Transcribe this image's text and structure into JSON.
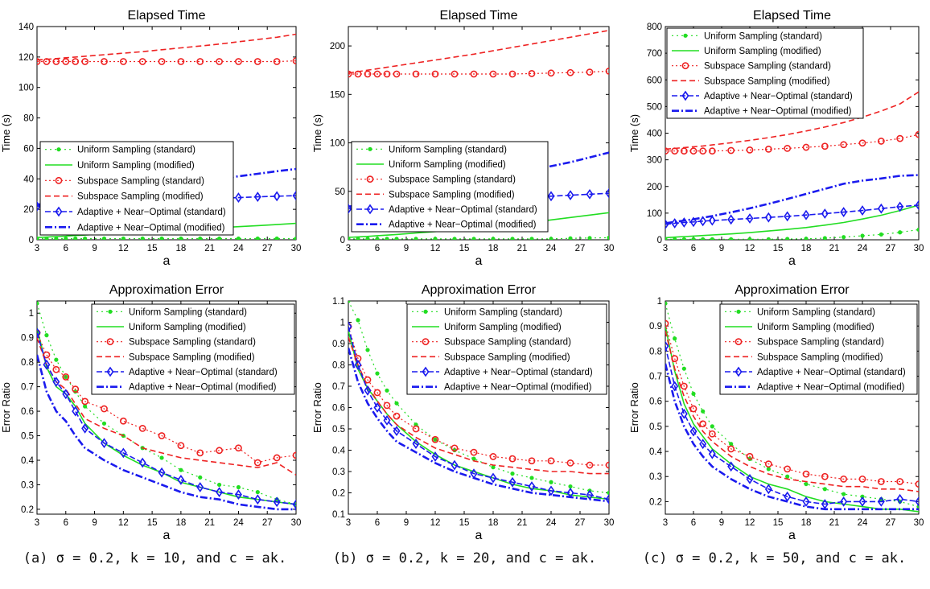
{
  "captions": [
    "(a) σ = 0.2, k = 10, and c = ak.",
    "(b) σ = 0.2, k = 20, and c = ak.",
    "(c) σ = 0.2, k = 50, and c = ak."
  ],
  "style": {
    "series_colors": [
      "#22dd22",
      "#22dd22",
      "#ee2222",
      "#ee2222",
      "#1a1aee",
      "#1a1aee"
    ]
  },
  "chart_data": [
    {
      "type": "line",
      "title": "Elapsed Time",
      "xlabel": "a",
      "ylabel": "Time (s)",
      "xlim": [
        3,
        30
      ],
      "ylim": [
        0,
        140
      ],
      "xticks": [
        "3",
        "6",
        "9",
        "12",
        "15",
        "18",
        "21",
        "24",
        "27",
        "30"
      ],
      "yticks": [
        "0",
        "20",
        "40",
        "60",
        "80",
        "100",
        "120",
        "140"
      ],
      "legend": "center-left",
      "x": [
        3,
        4,
        5,
        6,
        7,
        8,
        10,
        12,
        14,
        16,
        18,
        20,
        22,
        24,
        26,
        28,
        30
      ],
      "series": [
        {
          "name": "Uniform Sampling (standard)",
          "values": [
            0.8,
            0.8,
            0.8,
            0.8,
            0.8,
            0.8,
            0.8,
            0.8,
            0.8,
            0.8,
            0.8,
            0.8,
            0.8,
            0.8,
            0.8,
            0.8,
            0.8
          ]
        },
        {
          "name": "Uniform Sampling (modified)",
          "values": [
            1.5,
            1.8,
            2.1,
            2.4,
            2.8,
            3.1,
            3.8,
            4.4,
            5.1,
            5.8,
            6.5,
            7.2,
            7.9,
            8.6,
            9.3,
            10.0,
            10.8
          ]
        },
        {
          "name": "Subspace Sampling (standard)",
          "values": [
            117,
            117,
            117,
            117,
            117,
            117,
            117,
            117,
            117,
            117,
            117,
            117,
            117,
            117,
            117,
            117,
            117.5
          ]
        },
        {
          "name": "Subspace Sampling (modified)",
          "values": [
            118,
            118.5,
            119,
            119.5,
            120,
            120.5,
            121.5,
            122.5,
            123.5,
            124.8,
            126,
            127.2,
            128.5,
            130,
            131.5,
            133,
            135
          ]
        },
        {
          "name": "Adaptive + Near−Optimal (standard)",
          "values": [
            22,
            22.5,
            23,
            23.3,
            23.7,
            24,
            24.7,
            25.3,
            25.8,
            26.2,
            26.5,
            27,
            27.3,
            27.7,
            28.2,
            28.6,
            29
          ]
        },
        {
          "name": "Adaptive + Near−Optimal (modified)",
          "values": [
            23,
            24,
            25,
            26,
            27,
            27.8,
            29.5,
            31.3,
            33,
            34.8,
            36.6,
            38.3,
            40,
            41.7,
            43.3,
            45,
            46.5
          ]
        }
      ]
    },
    {
      "type": "line",
      "title": "Elapsed Time",
      "xlabel": "a",
      "ylabel": "Time (s)",
      "xlim": [
        3,
        30
      ],
      "ylim": [
        0,
        220
      ],
      "xticks": [
        "3",
        "6",
        "9",
        "12",
        "15",
        "18",
        "21",
        "24",
        "27",
        "30"
      ],
      "yticks": [
        "0",
        "50",
        "100",
        "150",
        "200"
      ],
      "legend": "center-left",
      "x": [
        3,
        4,
        5,
        6,
        7,
        8,
        10,
        12,
        14,
        16,
        18,
        20,
        22,
        24,
        26,
        28,
        30
      ],
      "series": [
        {
          "name": "Uniform Sampling (standard)",
          "values": [
            1,
            1,
            1,
            1,
            1,
            1,
            1,
            1,
            1,
            1,
            1,
            1,
            1,
            1,
            1.5,
            1.8,
            2.2
          ]
        },
        {
          "name": "Uniform Sampling (modified)",
          "values": [
            2.5,
            3,
            3.5,
            4.2,
            4.8,
            5.5,
            7,
            8.5,
            10,
            12,
            14,
            16,
            18,
            20.5,
            23,
            25.5,
            28
          ]
        },
        {
          "name": "Subspace Sampling (standard)",
          "values": [
            171,
            171,
            171,
            171,
            171,
            171,
            171,
            171,
            171,
            171,
            171,
            171,
            171.5,
            172,
            172.5,
            173,
            174
          ]
        },
        {
          "name": "Subspace Sampling (modified)",
          "values": [
            172,
            173.5,
            175,
            176.5,
            178,
            179.5,
            182.5,
            185.5,
            188.5,
            191.5,
            195,
            198.5,
            202,
            205.5,
            209,
            212.5,
            216
          ]
        },
        {
          "name": "Adaptive + Near−Optimal (standard)",
          "values": [
            32,
            33,
            34,
            34.7,
            35.4,
            36,
            37.5,
            38.5,
            39.5,
            40.5,
            41.5,
            42.5,
            44,
            45,
            46,
            47,
            48
          ]
        },
        {
          "name": "Adaptive + Near−Optimal (modified)",
          "values": [
            34,
            36,
            38,
            40,
            42,
            44,
            48,
            52,
            56,
            60,
            64,
            68,
            72,
            76,
            80,
            85,
            90
          ]
        }
      ]
    },
    {
      "type": "line",
      "title": "Elapsed Time",
      "xlabel": "a",
      "ylabel": "Time (s)",
      "xlim": [
        3,
        30
      ],
      "ylim": [
        0,
        800
      ],
      "xticks": [
        "3",
        "6",
        "9",
        "12",
        "15",
        "18",
        "21",
        "24",
        "27",
        "30"
      ],
      "yticks": [
        "0",
        "100",
        "200",
        "300",
        "400",
        "500",
        "600",
        "700",
        "800"
      ],
      "legend": "top-left",
      "x": [
        3,
        4,
        5,
        6,
        7,
        8,
        10,
        12,
        14,
        16,
        18,
        20,
        22,
        24,
        26,
        28,
        30
      ],
      "series": [
        {
          "name": "Uniform Sampling (standard)",
          "values": [
            2,
            2,
            2,
            2,
            2,
            2,
            2,
            2,
            2,
            3,
            4,
            6,
            10,
            15,
            20,
            28,
            38
          ]
        },
        {
          "name": "Uniform Sampling (modified)",
          "values": [
            8,
            10,
            12,
            14,
            16,
            18,
            22,
            27,
            33,
            39,
            46,
            55,
            65,
            78,
            92,
            110,
            130
          ]
        },
        {
          "name": "Subspace Sampling (standard)",
          "values": [
            333,
            333,
            333,
            333,
            333,
            333,
            335,
            337,
            340,
            343,
            347,
            351,
            357,
            363,
            370,
            380,
            395
          ]
        },
        {
          "name": "Subspace Sampling (modified)",
          "values": [
            340,
            343,
            346,
            349,
            352,
            356,
            364,
            373,
            383,
            395,
            408,
            423,
            440,
            460,
            483,
            510,
            555
          ]
        },
        {
          "name": "Adaptive + Near−Optimal (standard)",
          "values": [
            58,
            62,
            65,
            67,
            70,
            72,
            76,
            80,
            84,
            88,
            93,
            98,
            104,
            110,
            117,
            124,
            130
          ]
        },
        {
          "name": "Adaptive + Near−Optimal (modified)",
          "values": [
            62,
            67,
            72,
            77,
            83,
            89,
            103,
            118,
            135,
            153,
            172,
            191,
            210,
            222,
            230,
            240,
            243
          ]
        }
      ]
    },
    {
      "type": "line",
      "title": "Approximation Error",
      "xlabel": "a",
      "ylabel": "Error Ratio",
      "xlim": [
        3,
        30
      ],
      "ylim": [
        0.18,
        1.05
      ],
      "xticks": [
        "3",
        "6",
        "9",
        "12",
        "15",
        "18",
        "21",
        "24",
        "27",
        "30"
      ],
      "yticks": [
        "0.2",
        "0.3",
        "0.4",
        "0.5",
        "0.6",
        "0.7",
        "0.8",
        "0.9",
        "1"
      ],
      "legend": "top-right",
      "x": [
        3,
        4,
        5,
        6,
        7,
        8,
        10,
        12,
        14,
        16,
        18,
        20,
        22,
        24,
        26,
        28,
        30
      ],
      "series": [
        {
          "name": "Uniform Sampling (standard)",
          "values": [
            1.04,
            0.91,
            0.81,
            0.74,
            0.68,
            0.62,
            0.55,
            0.5,
            0.45,
            0.41,
            0.36,
            0.33,
            0.3,
            0.29,
            0.27,
            0.24,
            0.22
          ]
        },
        {
          "name": "Uniform Sampling (modified)",
          "values": [
            0.94,
            0.78,
            0.7,
            0.67,
            0.62,
            0.55,
            0.47,
            0.42,
            0.38,
            0.35,
            0.31,
            0.29,
            0.27,
            0.25,
            0.24,
            0.23,
            0.22
          ]
        },
        {
          "name": "Subspace Sampling (standard)",
          "values": [
            0.92,
            0.83,
            0.77,
            0.74,
            0.69,
            0.64,
            0.61,
            0.56,
            0.53,
            0.5,
            0.46,
            0.43,
            0.44,
            0.45,
            0.39,
            0.41,
            0.42
          ]
        },
        {
          "name": "Subspace Sampling (modified)",
          "values": [
            0.9,
            0.79,
            0.72,
            0.69,
            0.63,
            0.57,
            0.53,
            0.5,
            0.45,
            0.43,
            0.41,
            0.4,
            0.39,
            0.38,
            0.37,
            0.39,
            0.34
          ]
        },
        {
          "name": "Adaptive + Near−Optimal (standard)",
          "values": [
            0.92,
            0.79,
            0.72,
            0.67,
            0.6,
            0.53,
            0.47,
            0.43,
            0.39,
            0.35,
            0.32,
            0.29,
            0.27,
            0.26,
            0.24,
            0.23,
            0.22
          ]
        },
        {
          "name": "Adaptive + Near−Optimal (modified)",
          "values": [
            0.83,
            0.68,
            0.6,
            0.56,
            0.5,
            0.45,
            0.4,
            0.36,
            0.33,
            0.3,
            0.27,
            0.25,
            0.24,
            0.22,
            0.21,
            0.2,
            0.2
          ]
        }
      ]
    },
    {
      "type": "line",
      "title": "Approximation Error",
      "xlabel": "a",
      "ylabel": "Error Ratio",
      "xlim": [
        3,
        30
      ],
      "ylim": [
        0.1,
        1.1
      ],
      "xticks": [
        "3",
        "6",
        "9",
        "12",
        "15",
        "18",
        "21",
        "24",
        "27",
        "30"
      ],
      "yticks": [
        "0.1",
        "0.2",
        "0.3",
        "0.4",
        "0.5",
        "0.6",
        "0.7",
        "0.8",
        "0.9",
        "1",
        "1.1"
      ],
      "legend": "top-right",
      "x": [
        3,
        4,
        5,
        6,
        7,
        8,
        10,
        12,
        14,
        16,
        18,
        20,
        22,
        24,
        26,
        28,
        30
      ],
      "series": [
        {
          "name": "Uniform Sampling (standard)",
          "values": [
            1.1,
            1.01,
            0.87,
            0.76,
            0.68,
            0.62,
            0.52,
            0.45,
            0.4,
            0.36,
            0.32,
            0.29,
            0.27,
            0.25,
            0.23,
            0.21,
            0.2
          ]
        },
        {
          "name": "Uniform Sampling (modified)",
          "values": [
            0.96,
            0.78,
            0.69,
            0.63,
            0.57,
            0.52,
            0.44,
            0.38,
            0.33,
            0.3,
            0.27,
            0.24,
            0.22,
            0.21,
            0.19,
            0.18,
            0.17
          ]
        },
        {
          "name": "Subspace Sampling (standard)",
          "values": [
            0.98,
            0.83,
            0.73,
            0.67,
            0.61,
            0.56,
            0.5,
            0.45,
            0.41,
            0.39,
            0.37,
            0.36,
            0.35,
            0.35,
            0.34,
            0.33,
            0.33
          ]
        },
        {
          "name": "Subspace Sampling (modified)",
          "values": [
            0.93,
            0.8,
            0.7,
            0.63,
            0.57,
            0.52,
            0.46,
            0.41,
            0.38,
            0.35,
            0.33,
            0.32,
            0.31,
            0.3,
            0.3,
            0.29,
            0.29
          ]
        },
        {
          "name": "Adaptive + Near−Optimal (standard)",
          "values": [
            0.98,
            0.8,
            0.68,
            0.6,
            0.54,
            0.49,
            0.43,
            0.37,
            0.33,
            0.29,
            0.27,
            0.25,
            0.23,
            0.21,
            0.2,
            0.19,
            0.17
          ]
        },
        {
          "name": "Adaptive + Near−Optimal (modified)",
          "values": [
            0.88,
            0.72,
            0.62,
            0.55,
            0.49,
            0.44,
            0.39,
            0.34,
            0.3,
            0.27,
            0.24,
            0.22,
            0.2,
            0.19,
            0.18,
            0.17,
            0.16
          ]
        }
      ]
    },
    {
      "type": "line",
      "title": "Approximation Error",
      "xlabel": "a",
      "ylabel": "Error Ratio",
      "xlim": [
        3,
        30
      ],
      "ylim": [
        0.15,
        1.0
      ],
      "xticks": [
        "3",
        "6",
        "9",
        "12",
        "15",
        "18",
        "21",
        "24",
        "27",
        "30"
      ],
      "yticks": [
        "0.2",
        "0.3",
        "0.4",
        "0.5",
        "0.6",
        "0.7",
        "0.8",
        "0.9",
        "1"
      ],
      "legend": "top-right",
      "x": [
        3,
        4,
        5,
        6,
        7,
        8,
        10,
        12,
        14,
        16,
        18,
        20,
        22,
        24,
        26,
        28,
        30
      ],
      "series": [
        {
          "name": "Uniform Sampling (standard)",
          "values": [
            0.99,
            0.85,
            0.73,
            0.63,
            0.56,
            0.5,
            0.43,
            0.37,
            0.33,
            0.3,
            0.27,
            0.25,
            0.23,
            0.22,
            0.21,
            0.2,
            0.18
          ]
        },
        {
          "name": "Uniform Sampling (modified)",
          "values": [
            0.9,
            0.72,
            0.59,
            0.51,
            0.46,
            0.41,
            0.35,
            0.3,
            0.27,
            0.25,
            0.22,
            0.2,
            0.19,
            0.18,
            0.17,
            0.17,
            0.16
          ]
        },
        {
          "name": "Subspace Sampling (standard)",
          "values": [
            0.91,
            0.77,
            0.66,
            0.57,
            0.51,
            0.47,
            0.41,
            0.38,
            0.35,
            0.33,
            0.31,
            0.3,
            0.29,
            0.29,
            0.28,
            0.28,
            0.27
          ]
        },
        {
          "name": "Subspace Sampling (modified)",
          "values": [
            0.88,
            0.73,
            0.62,
            0.54,
            0.48,
            0.44,
            0.38,
            0.34,
            0.31,
            0.29,
            0.28,
            0.27,
            0.26,
            0.26,
            0.25,
            0.25,
            0.24
          ]
        },
        {
          "name": "Adaptive + Near−Optimal (standard)",
          "values": [
            0.82,
            0.66,
            0.55,
            0.48,
            0.43,
            0.39,
            0.34,
            0.29,
            0.25,
            0.22,
            0.2,
            0.19,
            0.2,
            0.2,
            0.2,
            0.21,
            0.2
          ]
        },
        {
          "name": "Adaptive + Near−Optimal (modified)",
          "values": [
            0.75,
            0.6,
            0.5,
            0.43,
            0.38,
            0.34,
            0.29,
            0.25,
            0.22,
            0.2,
            0.18,
            0.17,
            0.17,
            0.17,
            0.17,
            0.17,
            0.17
          ]
        }
      ]
    }
  ]
}
